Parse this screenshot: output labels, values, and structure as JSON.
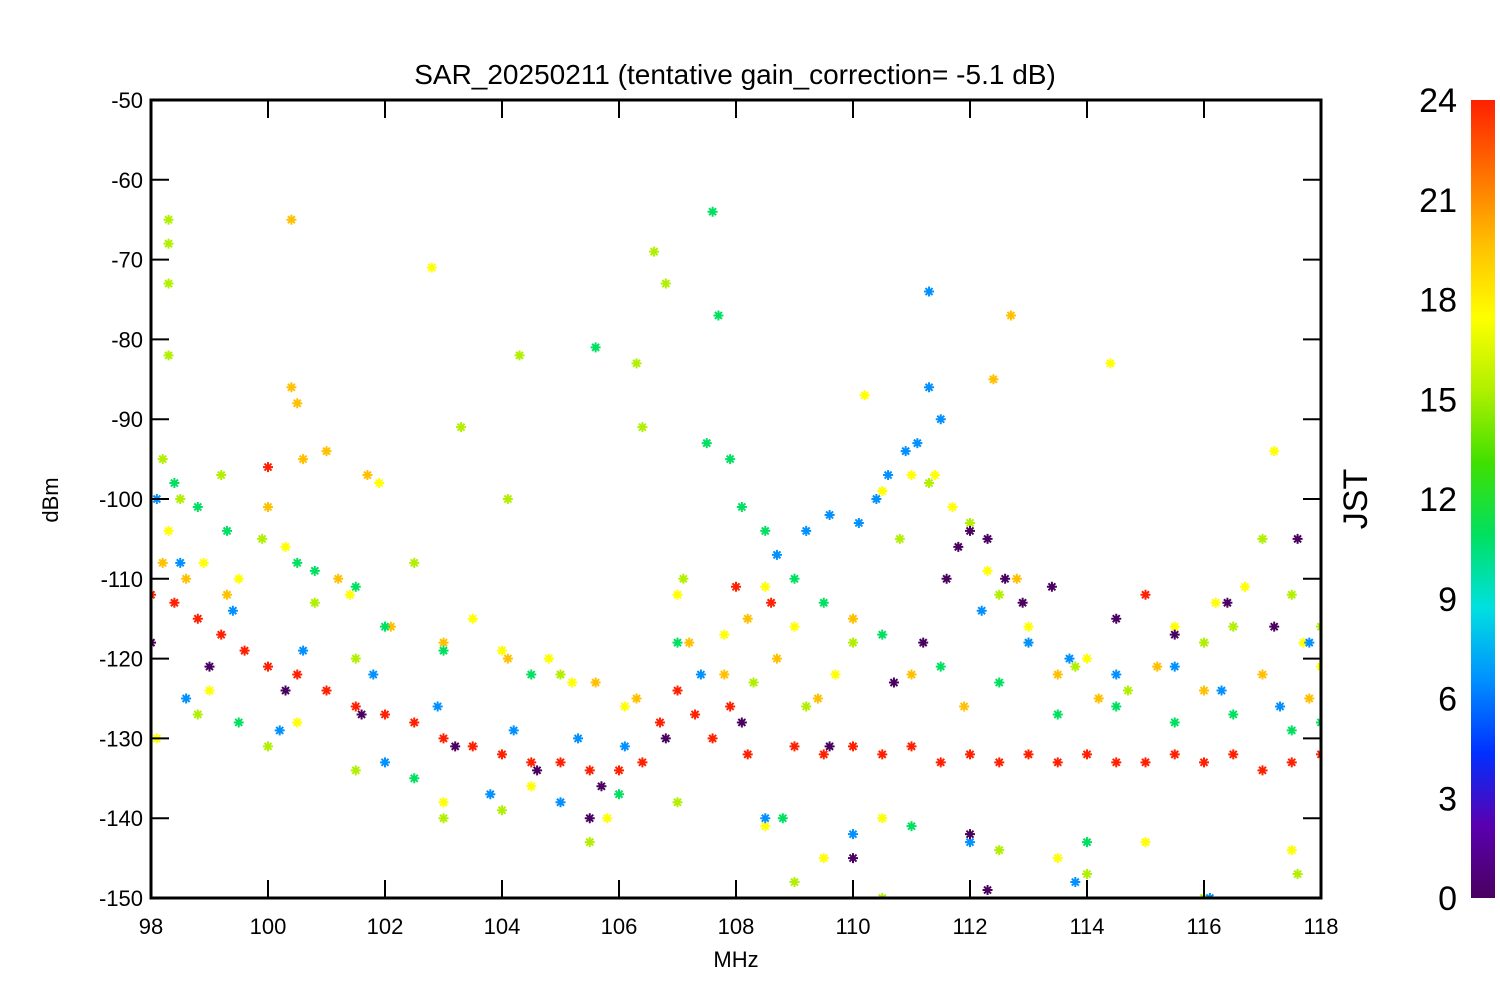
{
  "chart_data": {
    "type": "scatter",
    "title": "SAR_20250211 (tentative gain_correction= -5.1 dB)",
    "xlabel": "MHz",
    "ylabel": "dBm",
    "xlim": [
      98,
      118
    ],
    "ylim": [
      -150,
      -50
    ],
    "xticks": [
      "98",
      "100",
      "102",
      "104",
      "106",
      "108",
      "110",
      "112",
      "114",
      "116",
      "118"
    ],
    "yticks": [
      "-50",
      "-60",
      "-70",
      "-80",
      "-90",
      "-100",
      "-110",
      "-120",
      "-130",
      "-140",
      "-150"
    ],
    "grid": false,
    "marker": "asterisk",
    "colorbar": {
      "label": "JST",
      "range": [
        0,
        24
      ],
      "ticks": [
        "0",
        "3",
        "6",
        "9",
        "12",
        "15",
        "18",
        "21",
        "24"
      ],
      "colormap": "rainbow",
      "stops": [
        "#4a0060",
        "#5a00b0",
        "#0030ff",
        "#0090ff",
        "#00e0e0",
        "#00e060",
        "#40e000",
        "#b0f000",
        "#ffff00",
        "#ffc000",
        "#ff7000",
        "#ff2000"
      ]
    },
    "series": [
      {
        "jst": 23,
        "points": [
          [
            98.0,
            -112
          ],
          [
            98.4,
            -113
          ],
          [
            98.8,
            -115
          ],
          [
            99.2,
            -117
          ],
          [
            99.6,
            -119
          ],
          [
            100.0,
            -121
          ],
          [
            100.0,
            -96
          ],
          [
            100.5,
            -122
          ],
          [
            101.0,
            -124
          ],
          [
            101.5,
            -126
          ],
          [
            102.0,
            -127
          ],
          [
            102.5,
            -128
          ],
          [
            103.0,
            -130
          ],
          [
            103.5,
            -131
          ],
          [
            104.0,
            -132
          ],
          [
            104.5,
            -133
          ],
          [
            105.0,
            -133
          ],
          [
            105.5,
            -134
          ],
          [
            106.0,
            -134
          ],
          [
            106.4,
            -133
          ],
          [
            106.7,
            -128
          ],
          [
            107.0,
            -124
          ],
          [
            107.3,
            -127
          ],
          [
            107.6,
            -130
          ],
          [
            107.9,
            -126
          ],
          [
            108.0,
            -111
          ],
          [
            108.2,
            -132
          ],
          [
            108.6,
            -113
          ],
          [
            109.0,
            -131
          ],
          [
            109.5,
            -132
          ],
          [
            110.0,
            -131
          ],
          [
            110.5,
            -132
          ],
          [
            111.0,
            -131
          ],
          [
            111.5,
            -133
          ],
          [
            112.0,
            -132
          ],
          [
            112.5,
            -133
          ],
          [
            113.0,
            -132
          ],
          [
            113.5,
            -133
          ],
          [
            114.0,
            -132
          ],
          [
            114.5,
            -133
          ],
          [
            115.0,
            -112
          ],
          [
            115.0,
            -133
          ],
          [
            115.5,
            -132
          ],
          [
            116.0,
            -133
          ],
          [
            116.5,
            -132
          ],
          [
            117.0,
            -134
          ],
          [
            117.5,
            -133
          ],
          [
            118.0,
            -132
          ]
        ]
      },
      {
        "jst": 20,
        "points": [
          [
            98.2,
            -108
          ],
          [
            98.6,
            -110
          ],
          [
            99.3,
            -112
          ],
          [
            100.4,
            -86
          ],
          [
            100.5,
            -88
          ],
          [
            100.6,
            -95
          ],
          [
            101.2,
            -110
          ],
          [
            101.7,
            -97
          ],
          [
            102.1,
            -116
          ],
          [
            103.0,
            -118
          ],
          [
            104.1,
            -120
          ],
          [
            105.0,
            -122
          ],
          [
            105.6,
            -123
          ],
          [
            106.3,
            -125
          ],
          [
            107.2,
            -118
          ],
          [
            107.8,
            -122
          ],
          [
            108.2,
            -115
          ],
          [
            108.7,
            -120
          ],
          [
            109.4,
            -125
          ],
          [
            110.0,
            -115
          ],
          [
            111.0,
            -122
          ],
          [
            111.9,
            -126
          ],
          [
            112.4,
            -85
          ],
          [
            112.7,
            -77
          ],
          [
            112.8,
            -110
          ],
          [
            113.5,
            -122
          ],
          [
            114.2,
            -125
          ],
          [
            115.2,
            -121
          ],
          [
            116.0,
            -124
          ],
          [
            117.0,
            -122
          ],
          [
            117.8,
            -125
          ],
          [
            100.0,
            -101
          ],
          [
            100.4,
            -65
          ],
          [
            101.0,
            -94
          ]
        ]
      },
      {
        "jst": 17,
        "points": [
          [
            98.3,
            -104
          ],
          [
            98.9,
            -108
          ],
          [
            99.5,
            -110
          ],
          [
            100.3,
            -106
          ],
          [
            101.4,
            -112
          ],
          [
            101.9,
            -98
          ],
          [
            102.8,
            -71
          ],
          [
            103.5,
            -115
          ],
          [
            104.0,
            -119
          ],
          [
            104.8,
            -120
          ],
          [
            105.2,
            -123
          ],
          [
            106.1,
            -126
          ],
          [
            107.0,
            -112
          ],
          [
            107.8,
            -117
          ],
          [
            108.5,
            -111
          ],
          [
            109.0,
            -116
          ],
          [
            109.7,
            -122
          ],
          [
            110.2,
            -87
          ],
          [
            110.5,
            -99
          ],
          [
            111.0,
            -97
          ],
          [
            111.4,
            -97
          ],
          [
            111.7,
            -101
          ],
          [
            112.3,
            -109
          ],
          [
            113.0,
            -116
          ],
          [
            114.0,
            -120
          ],
          [
            114.4,
            -83
          ],
          [
            115.5,
            -116
          ],
          [
            116.2,
            -113
          ],
          [
            116.7,
            -111
          ],
          [
            117.2,
            -94
          ],
          [
            117.7,
            -118
          ],
          [
            118.0,
            -121
          ],
          [
            98.1,
            -130
          ],
          [
            99.0,
            -124
          ],
          [
            100.5,
            -128
          ],
          [
            103.0,
            -138
          ],
          [
            104.5,
            -136
          ],
          [
            105.8,
            -140
          ],
          [
            108.5,
            -141
          ],
          [
            109.5,
            -145
          ],
          [
            110.5,
            -140
          ],
          [
            112.0,
            -142
          ],
          [
            113.5,
            -145
          ],
          [
            115.0,
            -143
          ],
          [
            117.5,
            -144
          ]
        ]
      },
      {
        "jst": 15,
        "points": [
          [
            98.3,
            -65
          ],
          [
            98.3,
            -68
          ],
          [
            98.3,
            -73
          ],
          [
            98.3,
            -82
          ],
          [
            98.2,
            -95
          ],
          [
            98.5,
            -100
          ],
          [
            99.2,
            -97
          ],
          [
            99.9,
            -105
          ],
          [
            100.8,
            -113
          ],
          [
            101.5,
            -120
          ],
          [
            102.5,
            -108
          ],
          [
            103.3,
            -91
          ],
          [
            104.1,
            -100
          ],
          [
            104.3,
            -82
          ],
          [
            105.0,
            -122
          ],
          [
            106.3,
            -83
          ],
          [
            106.4,
            -91
          ],
          [
            106.6,
            -69
          ],
          [
            106.8,
            -73
          ],
          [
            107.1,
            -110
          ],
          [
            108.3,
            -123
          ],
          [
            109.2,
            -126
          ],
          [
            110.0,
            -118
          ],
          [
            110.8,
            -105
          ],
          [
            111.3,
            -98
          ],
          [
            112.0,
            -103
          ],
          [
            112.5,
            -112
          ],
          [
            113.0,
            -118
          ],
          [
            113.8,
            -121
          ],
          [
            114.7,
            -124
          ],
          [
            116.0,
            -118
          ],
          [
            116.5,
            -116
          ],
          [
            117.0,
            -105
          ],
          [
            117.5,
            -112
          ],
          [
            118.0,
            -116
          ],
          [
            98.8,
            -127
          ],
          [
            100.0,
            -131
          ],
          [
            101.5,
            -134
          ],
          [
            103.0,
            -140
          ],
          [
            104.0,
            -139
          ],
          [
            105.5,
            -143
          ],
          [
            107.0,
            -138
          ],
          [
            109.0,
            -148
          ],
          [
            110.5,
            -150
          ],
          [
            112.5,
            -144
          ],
          [
            114.0,
            -147
          ],
          [
            116.0,
            -150
          ],
          [
            117.6,
            -147
          ]
        ]
      },
      {
        "jst": 11,
        "points": [
          [
            98.4,
            -98
          ],
          [
            98.8,
            -101
          ],
          [
            99.3,
            -104
          ],
          [
            100.5,
            -108
          ],
          [
            100.8,
            -109
          ],
          [
            101.5,
            -111
          ],
          [
            102.0,
            -116
          ],
          [
            103.0,
            -119
          ],
          [
            104.5,
            -122
          ],
          [
            105.6,
            -81
          ],
          [
            107.0,
            -118
          ],
          [
            107.5,
            -93
          ],
          [
            107.6,
            -64
          ],
          [
            107.7,
            -77
          ],
          [
            107.9,
            -95
          ],
          [
            108.1,
            -101
          ],
          [
            108.5,
            -104
          ],
          [
            109.0,
            -110
          ],
          [
            109.5,
            -113
          ],
          [
            110.5,
            -117
          ],
          [
            111.5,
            -121
          ],
          [
            112.5,
            -123
          ],
          [
            113.5,
            -127
          ],
          [
            114.5,
            -126
          ],
          [
            115.5,
            -128
          ],
          [
            116.5,
            -127
          ],
          [
            117.5,
            -129
          ],
          [
            118.0,
            -128
          ],
          [
            99.5,
            -128
          ],
          [
            102.5,
            -135
          ],
          [
            106.0,
            -137
          ],
          [
            108.8,
            -140
          ],
          [
            111.0,
            -141
          ],
          [
            114.0,
            -143
          ]
        ]
      },
      {
        "jst": 6,
        "points": [
          [
            98.1,
            -100
          ],
          [
            98.5,
            -108
          ],
          [
            99.4,
            -114
          ],
          [
            100.6,
            -119
          ],
          [
            101.8,
            -122
          ],
          [
            102.9,
            -126
          ],
          [
            104.2,
            -129
          ],
          [
            105.3,
            -130
          ],
          [
            106.1,
            -131
          ],
          [
            107.4,
            -122
          ],
          [
            108.7,
            -107
          ],
          [
            109.2,
            -104
          ],
          [
            109.6,
            -102
          ],
          [
            110.1,
            -103
          ],
          [
            110.4,
            -100
          ],
          [
            110.6,
            -97
          ],
          [
            110.9,
            -94
          ],
          [
            111.1,
            -93
          ],
          [
            111.3,
            -86
          ],
          [
            111.5,
            -90
          ],
          [
            111.3,
            -74
          ],
          [
            112.2,
            -114
          ],
          [
            113.0,
            -118
          ],
          [
            113.7,
            -120
          ],
          [
            114.5,
            -122
          ],
          [
            115.5,
            -121
          ],
          [
            116.3,
            -124
          ],
          [
            117.3,
            -126
          ],
          [
            117.8,
            -118
          ],
          [
            98.6,
            -125
          ],
          [
            100.2,
            -129
          ],
          [
            102.0,
            -133
          ],
          [
            103.8,
            -137
          ],
          [
            105.0,
            -138
          ],
          [
            108.5,
            -140
          ],
          [
            110.0,
            -142
          ],
          [
            112.0,
            -143
          ],
          [
            113.8,
            -148
          ],
          [
            116.1,
            -150
          ]
        ]
      },
      {
        "jst": 1,
        "points": [
          [
            98.0,
            -118
          ],
          [
            99.0,
            -121
          ],
          [
            100.3,
            -124
          ],
          [
            101.6,
            -127
          ],
          [
            103.2,
            -131
          ],
          [
            104.6,
            -134
          ],
          [
            105.7,
            -136
          ],
          [
            106.8,
            -130
          ],
          [
            108.1,
            -128
          ],
          [
            109.6,
            -131
          ],
          [
            110.7,
            -123
          ],
          [
            111.2,
            -118
          ],
          [
            111.6,
            -110
          ],
          [
            111.8,
            -106
          ],
          [
            112.0,
            -104
          ],
          [
            112.3,
            -105
          ],
          [
            112.6,
            -110
          ],
          [
            112.9,
            -113
          ],
          [
            113.4,
            -111
          ],
          [
            114.5,
            -115
          ],
          [
            115.5,
            -117
          ],
          [
            116.4,
            -113
          ],
          [
            117.2,
            -116
          ],
          [
            117.6,
            -105
          ],
          [
            112.0,
            -142
          ],
          [
            110.0,
            -145
          ],
          [
            105.5,
            -140
          ],
          [
            112.3,
            -149
          ]
        ]
      }
    ]
  }
}
